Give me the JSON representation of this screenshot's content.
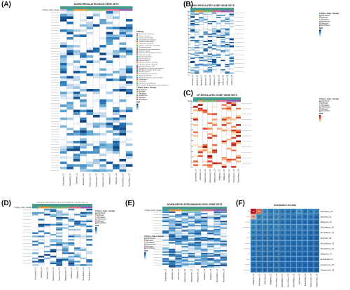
{
  "palette": {
    "celltype": [
      "#3aa0a8",
      "#e89b3c",
      "#c9b3d9",
      "#7ab06b",
      "#e06a8e",
      "#9b59b6"
    ],
    "pathway": [
      "#8e44ad",
      "#e67e22",
      "#2ecc71",
      "#3498db",
      "#e74c3c",
      "#f1c40f",
      "#1abc9c",
      "#95a5a6",
      "#d35400",
      "#16a085",
      "#c0392b",
      "#7f8c8d",
      "#27ae60",
      "#2980b9",
      "#8e44ad",
      "#f39c12",
      "#bdc3c7",
      "#34495e",
      "#e84393",
      "#00b894"
    ],
    "heat_blue": [
      "#ffffff",
      "#c6dbef",
      "#6baed6",
      "#2171b5",
      "#08306b"
    ],
    "heat_red": [
      "#ffffff",
      "#fdd49e",
      "#fc8d59",
      "#d7301f",
      "#7f0000"
    ],
    "heat_interaction": [
      "#2166ac",
      "#4393c3",
      "#92c5de",
      "#f4a582",
      "#d6604d",
      "#b2182b"
    ]
  },
  "chart_data": [
    {
      "panel": "A",
      "type": "heatmap",
      "title": "DOWN-REGULATED KEGG GENE SETS",
      "annotation_label": "Cellype_major_lineage",
      "x_labels": [
        "Fibroblasts_C0",
        "Endothelial_C0",
        "Epithelial_C0",
        "Epithelial_C10",
        "Hepatocytes_C0",
        "Hepatocytes_C6",
        "Hepatocytes_C9",
        "Malignant_C0",
        "Malignant_C8",
        "Mono/Macro_C0",
        "Mono/Macro_C6"
      ],
      "legend_pathway_title": "Pathway",
      "legend_pathway_items": [
        "Amino acid metabolism",
        "Cancer: overview",
        "Cancer: specific types",
        "Carbohydrate metabolism",
        "Cardiovascular disease",
        "Cell growth and death",
        "Cellular community - eukaryotes",
        "Circulatory system",
        "Development and regeneration",
        "Digestive system",
        "Endocrine and metabolic disease",
        "Endocrine system",
        "Energy metabolism",
        "Immune diseases",
        "Immune system",
        "Infectious disease: bacterial",
        "Infectious disease: parasitic",
        "Infectious disease: viral",
        "Metabolism of cofactors and vitamins",
        "Metabolism of other amino acids",
        "Nervous system",
        "Neurodegenerative disease",
        "Signal transduction",
        "Signaling molecules and interaction",
        "Transcription",
        "Translation",
        "Transport and catabolism",
        "Xenobiotics biodegradation and metabolism"
      ],
      "legend_lineage_title": "Cellype_major_lineage",
      "legend_lineage_items": [
        "Endothelial",
        "Epithelial",
        "Fibroblasts",
        "Hepatocytes",
        "Malignant",
        "Mono/Macro"
      ],
      "legend_nes_title": "NES"
    },
    {
      "panel": "B",
      "type": "heatmap",
      "title": "DOWN-REGULATED GOBP GENE SETS",
      "annotation_label": "Cellype_major_lineage",
      "x_labels": [
        "Endothelial_C1",
        "Epithelial_C0",
        "Epithelial_C1",
        "Hepatocytes_C0",
        "Hepatocytes_C6",
        "Malignant_C0",
        "Malignant_C8",
        "Mono/Macro_C0",
        "Mono/Macro_C6",
        "Mono/Macro_C8"
      ],
      "legend_lineage_title": "Cellype_major_lineage",
      "legend_lineage_items": [
        "Endothelial",
        "Epithelial",
        "Fibroblasts",
        "Hepatocytes",
        "Malignant",
        "Mono/Macro"
      ],
      "legend_nes_title": "NES"
    },
    {
      "panel": "C",
      "type": "heatmap",
      "title": "UP-REGULATED GOBP GENE SETS",
      "annotation_label": "Cellype_major_lineage",
      "x_labels": [
        "Endothelial_C0",
        "Epithelial_C1",
        "Hepatocytes_C0",
        "Hepatocytes_C6",
        "Hepatocytes_C9",
        "Malignant_C0",
        "Malignant_C8",
        "Mono/Macro_C0",
        "Mono/Macro_C6",
        "Mono/Macro_C8"
      ],
      "legend_lineage_title": "Cellype_major_lineage",
      "legend_lineage_items": [
        "Endothelial",
        "Epithelial",
        "Fibroblasts",
        "Hepatocytes",
        "Malignant",
        "Mono/Macro"
      ],
      "legend_nes_title": "NES"
    },
    {
      "panel": "D",
      "type": "heatmap",
      "title": "DOWN-REGULATED HALLMARK GENE SETS",
      "annotation_label": "Cellype_major_lineage",
      "x_labels": [
        "Endothelial_C0",
        "Epithelial_C0",
        "Epithelial_C10",
        "Hepatocytes_C0",
        "Hepatocytes_C6",
        "Hepatocytes_C9",
        "Malignant_C0",
        "Malignant_C8",
        "Mono/Macro_C0",
        "Mono/Macro_C6"
      ],
      "legend_pathway_title": "Pathway",
      "legend_lineage_title": "Cellype_major_lineage",
      "legend_lineage_items": [
        "Endothelial",
        "Epithelial",
        "Fibroblasts",
        "Hepatocytes",
        "Malignant",
        "Mono/Macro"
      ],
      "legend_nes_title": "NES"
    },
    {
      "panel": "E",
      "type": "heatmap",
      "title": "DOWN-REGULATED IMMUNOLOGIC GENE SETS",
      "annotation_label": "Cellype_major_lineage",
      "x_labels": [
        "Endothelial_C0",
        "Epithelial_C0",
        "Epithelial_C1",
        "Hepatocytes_C0",
        "Hepatocytes_C6",
        "Hepatocytes_C9",
        "Malignant_C0",
        "Malignant_C8",
        "Mono/Macro_C0",
        "Mono/Macro_C6"
      ],
      "legend_lineage_title": "Cellype_major_lineage",
      "legend_lineage_items": [
        "Endothelial",
        "Epithelial",
        "Fibroblasts",
        "Hepatocytes",
        "Malignant",
        "Mono/Macro"
      ],
      "legend_nes_title": "NES"
    },
    {
      "panel": "F",
      "type": "heatmap",
      "title": "Interaction Counts",
      "rows": [
        "Fibroblasts_C0",
        "Epithelial_C0",
        "Malignant_C0",
        "Mono/Macro_C0",
        "Mono/Macro_C1",
        "Epithelial_C8",
        "Mono/Macro_C3",
        "Mono/Macro_C6",
        "Malignant_C3",
        "Endothelial_C0",
        "Hepatocytes_C0",
        "Hepatocytes_C4"
      ],
      "columns": [
        "Malignant_C0",
        "Fibroblasts_C0",
        "Epithelial_C0",
        "Malignant_C3",
        "Mono/Macro_C0",
        "Mono/Macro_C1",
        "Mono/Macro_C3",
        "Mono/Macro_C6",
        "Epithelial_C8",
        "Endothelial_C0",
        "Hepatocytes_C0",
        "Hepatocytes_C4"
      ],
      "values": [
        [
          73,
          59,
          21,
          17,
          20,
          17,
          16,
          15,
          23,
          15,
          18,
          19
        ],
        [
          45,
          20,
          21,
          17,
          20,
          17,
          16,
          15,
          17,
          14,
          15,
          12
        ],
        [
          21,
          18,
          19,
          17,
          17,
          15,
          14,
          13,
          14,
          14,
          12,
          12
        ],
        [
          20,
          17,
          17,
          17,
          20,
          17,
          16,
          15,
          17,
          14,
          15,
          12
        ],
        [
          17,
          16,
          16,
          15,
          17,
          15,
          14,
          13,
          14,
          14,
          12,
          12
        ],
        [
          16,
          15,
          15,
          14,
          16,
          14,
          13,
          12,
          13,
          13,
          11,
          11
        ],
        [
          15,
          14,
          14,
          14,
          15,
          13,
          13,
          12,
          13,
          12,
          11,
          11
        ],
        [
          15,
          14,
          14,
          13,
          15,
          13,
          12,
          12,
          12,
          12,
          11,
          10
        ],
        [
          14,
          14,
          13,
          13,
          14,
          13,
          12,
          11,
          12,
          12,
          11,
          10
        ],
        [
          14,
          13,
          13,
          13,
          14,
          12,
          12,
          11,
          12,
          11,
          10,
          10
        ],
        [
          13,
          13,
          12,
          12,
          13,
          12,
          11,
          11,
          11,
          11,
          10,
          10
        ],
        [
          12,
          12,
          12,
          12,
          13,
          12,
          11,
          10,
          11,
          11,
          10,
          10
        ]
      ]
    }
  ],
  "panels": {
    "a": "(A)",
    "b": "(B)",
    "c": "(C)",
    "d": "(D)",
    "e": "(E)",
    "f": "(F)"
  }
}
